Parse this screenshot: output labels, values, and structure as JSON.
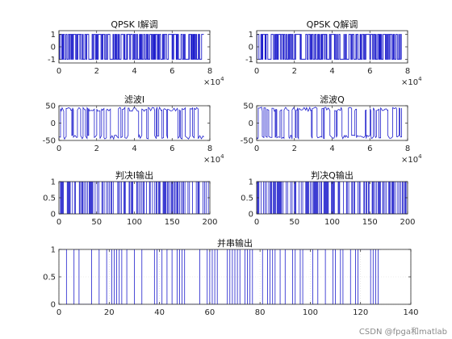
{
  "figure": {
    "background": "#ffffff",
    "axes_color": "#262626",
    "line_color": "#1f1fcc",
    "watermark": "CSDN @fpga和matlab"
  },
  "chart_data": [
    {
      "type": "line",
      "title": "QPSK I解调",
      "xlim": [
        0,
        80000
      ],
      "ylim": [
        -1.3,
        1.3
      ],
      "xticks": [
        0,
        2,
        4,
        6,
        8
      ],
      "xtick_labels": [
        "0",
        "2",
        "4",
        "6",
        "8"
      ],
      "x_multiplier": "×10^4",
      "yticks": [
        -1,
        0,
        1
      ],
      "ytick_labels": [
        "-1",
        "0",
        "1"
      ],
      "signal": "random bipolar chips, levels -1 and 1, densely switching over 0–76800 samples",
      "levels": [
        -1,
        1
      ],
      "x_end": 76800,
      "grid": false
    },
    {
      "type": "line",
      "title": "QPSK Q解调",
      "xlim": [
        0,
        80000
      ],
      "ylim": [
        -1.3,
        1.3
      ],
      "xticks": [
        0,
        2,
        4,
        6,
        8
      ],
      "xtick_labels": [
        "0",
        "2",
        "4",
        "6",
        "8"
      ],
      "x_multiplier": "×10^4",
      "yticks": [
        -1,
        0,
        1
      ],
      "ytick_labels": [
        "-1",
        "0",
        "1"
      ],
      "signal": "random bipolar chips, levels -1 and 1, densely switching over 0–76800 samples",
      "levels": [
        -1,
        1
      ],
      "x_end": 76800,
      "grid": false
    },
    {
      "type": "line",
      "title": "滤波I",
      "xlim": [
        0,
        80000
      ],
      "ylim": [
        -50,
        50
      ],
      "xticks": [
        0,
        2,
        4,
        6,
        8
      ],
      "xtick_labels": [
        "0",
        "2",
        "4",
        "6",
        "8"
      ],
      "x_multiplier": "×10^4",
      "yticks": [
        -50,
        0,
        50
      ],
      "ytick_labels": [
        "-50",
        "0",
        "50"
      ],
      "signal": "filtered signal swinging between about -40 and +40",
      "levels": [
        -40,
        40
      ],
      "x_end": 76800,
      "grid": false
    },
    {
      "type": "line",
      "title": "滤波Q",
      "xlim": [
        0,
        80000
      ],
      "ylim": [
        -50,
        50
      ],
      "xticks": [
        0,
        2,
        4,
        6,
        8
      ],
      "xtick_labels": [
        "0",
        "2",
        "4",
        "6",
        "8"
      ],
      "x_multiplier": "×10^4",
      "yticks": [
        -50,
        0,
        50
      ],
      "ytick_labels": [
        "-50",
        "0",
        "50"
      ],
      "signal": "filtered signal swinging between about -40 and +40",
      "levels": [
        -40,
        40
      ],
      "x_end": 76800,
      "grid": false
    },
    {
      "type": "line",
      "title": "判决I输出",
      "xlim": [
        0,
        200
      ],
      "ylim": [
        0,
        1
      ],
      "xticks": [
        0,
        50,
        100,
        150,
        200
      ],
      "xtick_labels": [
        "0",
        "50",
        "100",
        "150",
        "200"
      ],
      "yticks": [
        0,
        0.5,
        1
      ],
      "ytick_labels": [
        "0",
        "0.5",
        "1"
      ],
      "signal": "binary decisions 0/1 over 200 samples",
      "levels": [
        0,
        1
      ],
      "x_end": 200,
      "grid": false
    },
    {
      "type": "line",
      "title": "判决Q输出",
      "xlim": [
        0,
        200
      ],
      "ylim": [
        0,
        1
      ],
      "xticks": [
        0,
        50,
        100,
        150,
        200
      ],
      "xtick_labels": [
        "0",
        "50",
        "100",
        "150",
        "200"
      ],
      "yticks": [
        0,
        0.5,
        1
      ],
      "ytick_labels": [
        "0",
        "0.5",
        "1"
      ],
      "signal": "binary decisions 0/1 over 200 samples",
      "levels": [
        0,
        1
      ],
      "x_end": 200,
      "grid": false
    },
    {
      "type": "line",
      "title": "并串输出",
      "xlim": [
        0,
        140
      ],
      "ylim": [
        0,
        1
      ],
      "xticks": [
        0,
        20,
        40,
        60,
        80,
        100,
        120,
        140
      ],
      "xtick_labels": [
        "0",
        "20",
        "40",
        "60",
        "80",
        "100",
        "120",
        "140"
      ],
      "yticks": [
        0,
        0.5,
        1
      ],
      "ytick_labels": [
        "0",
        "0.5",
        "1"
      ],
      "signal": "serial binary stream 0/1 over 128 samples",
      "levels": [
        0,
        1
      ],
      "x_end": 128,
      "grid": true
    }
  ]
}
